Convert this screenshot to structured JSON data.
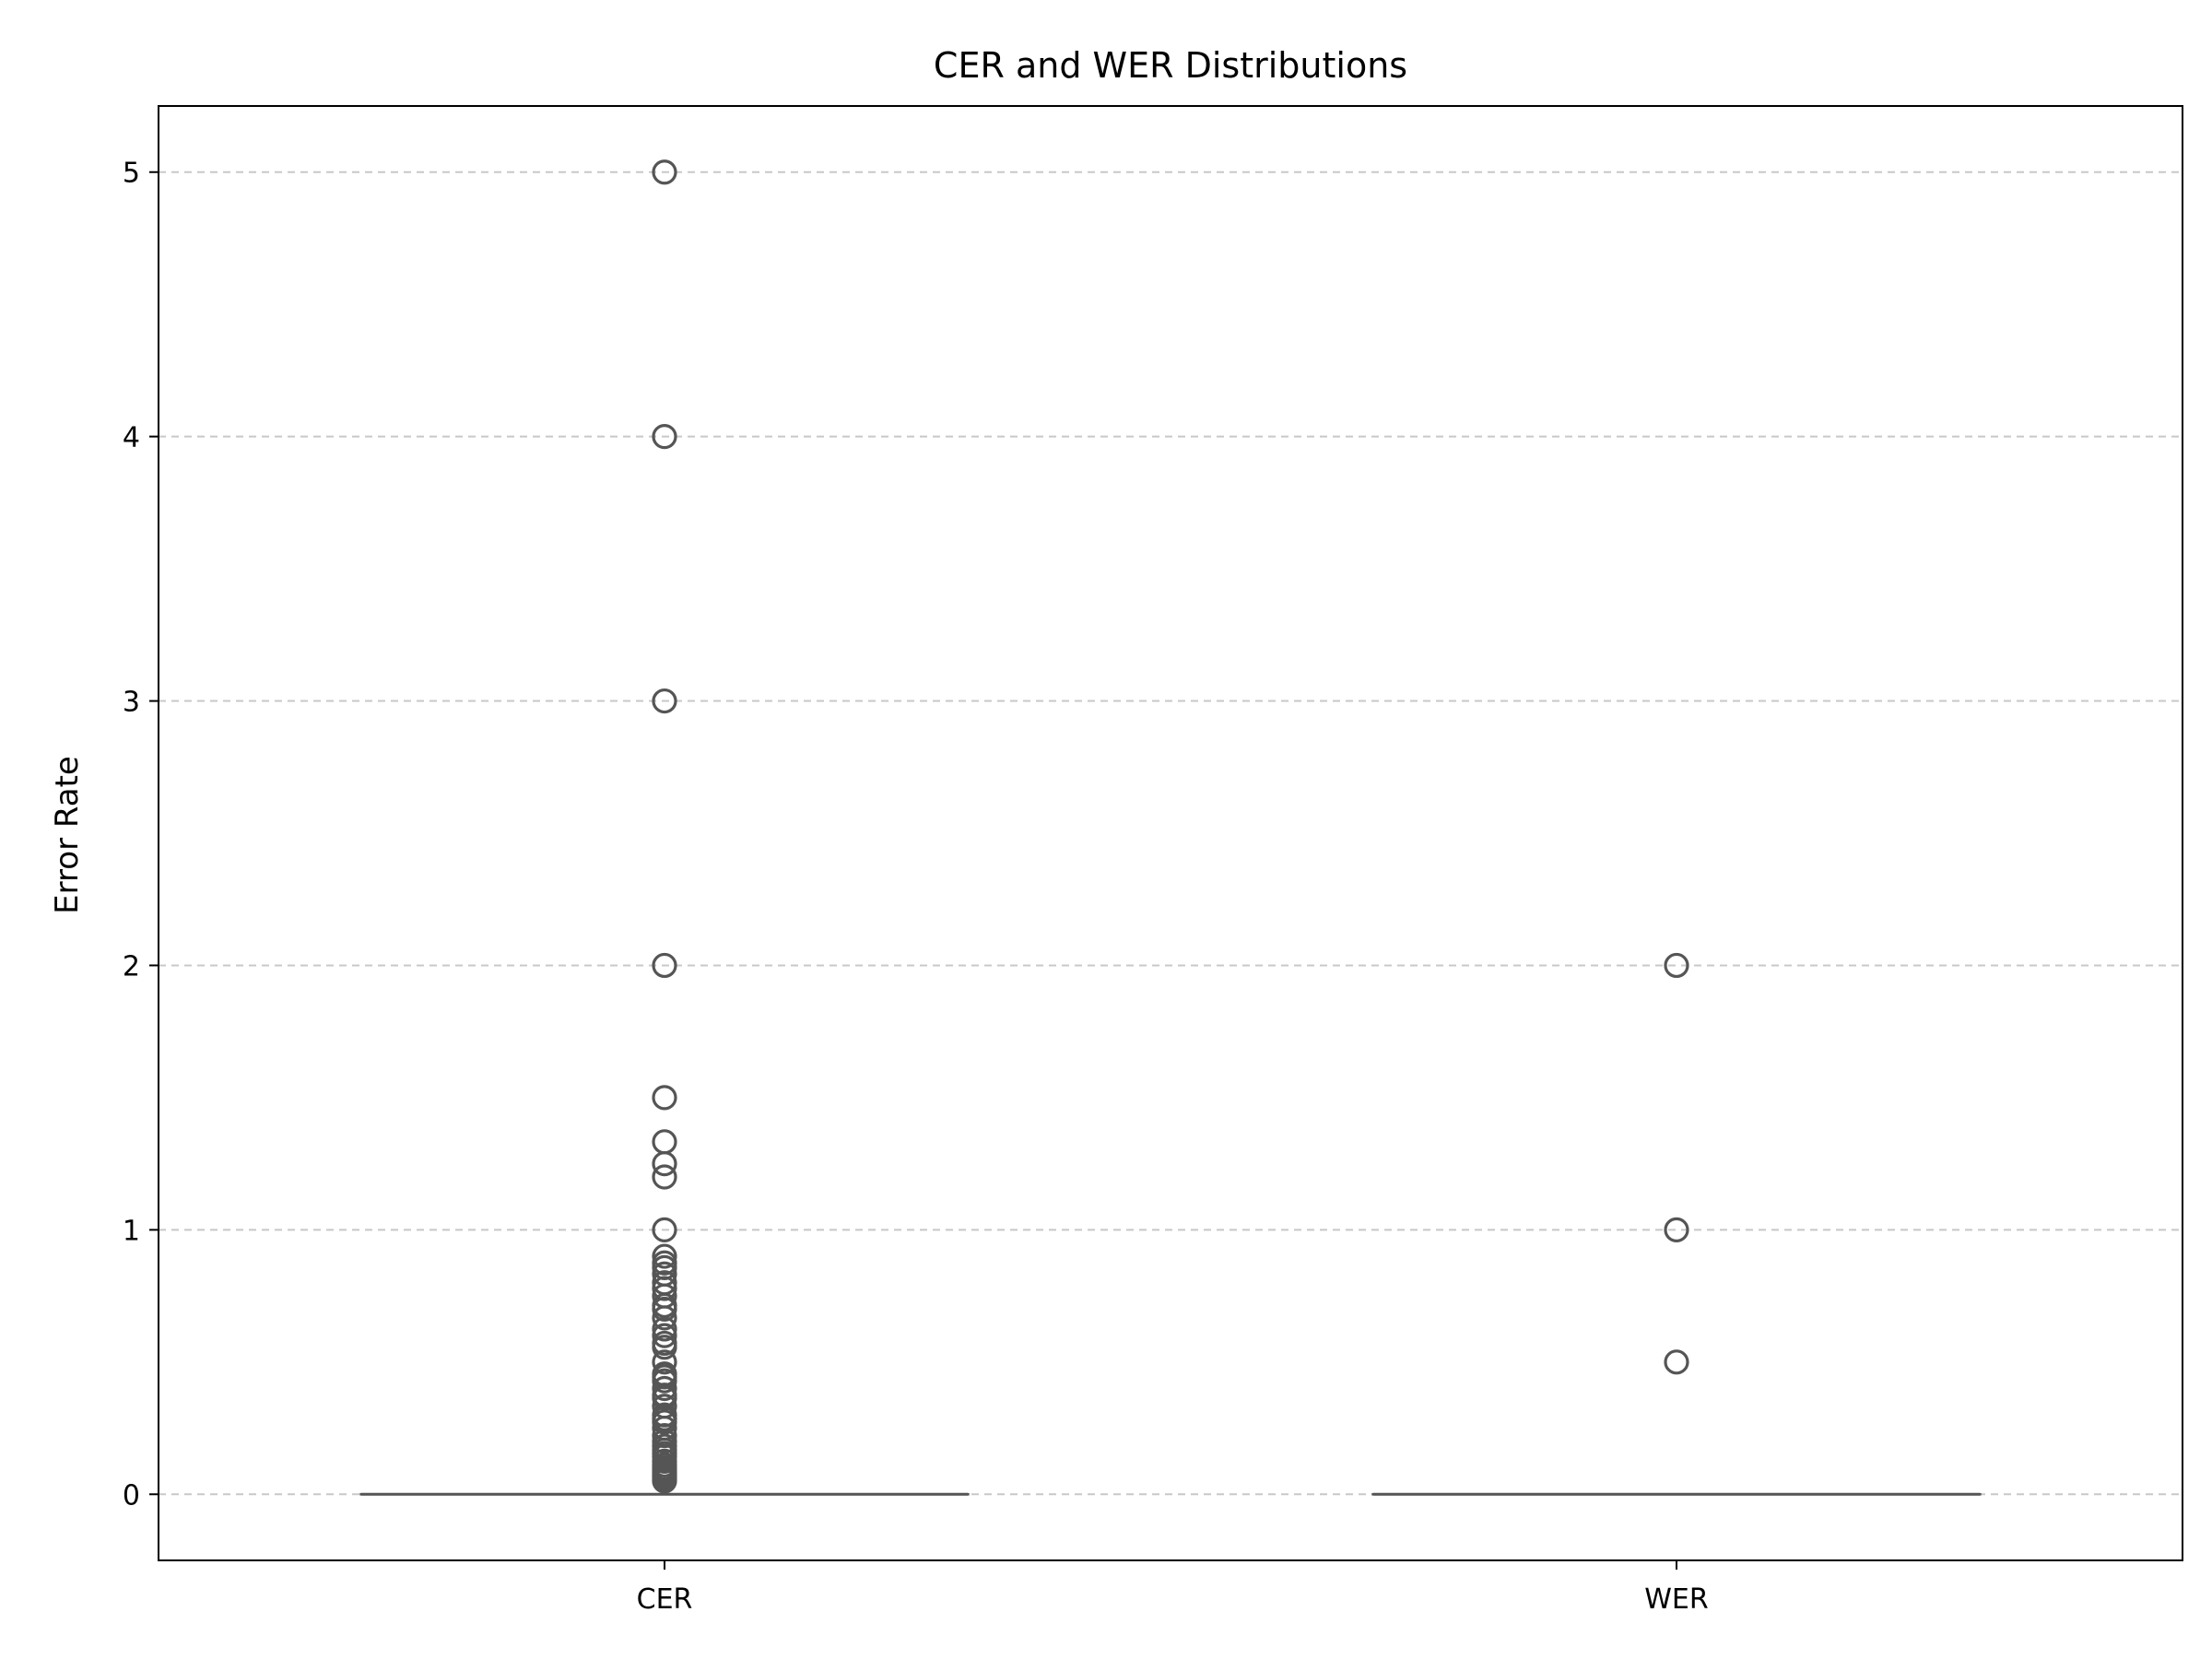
{
  "chart_data": {
    "type": "box",
    "title": "CER and WER Distributions",
    "xlabel": "",
    "ylabel": "Error Rate",
    "categories": [
      "CER",
      "WER"
    ],
    "ylim": [
      -0.25,
      5.25
    ],
    "yticks": [
      0,
      1,
      2,
      3,
      4,
      5
    ],
    "grid": {
      "axis": "y",
      "style": "dashed"
    },
    "colors": {
      "box_line": "#555555",
      "grid": "#c8c8c8",
      "axes": "#000000"
    },
    "boxes": [
      {
        "name": "CER",
        "q1": 0,
        "median": 0,
        "q3": 0,
        "whisker_low": 0,
        "whisker_high": 0,
        "outliers": [
          5,
          4,
          3,
          2,
          1.5,
          1.333,
          1.25,
          1.2,
          1,
          0.9,
          0.875,
          0.857,
          0.833,
          0.8,
          0.778,
          0.75,
          0.714,
          0.7,
          0.667,
          0.625,
          0.6,
          0.571,
          0.556,
          0.5,
          0.455,
          0.444,
          0.429,
          0.4,
          0.375,
          0.364,
          0.333,
          0.3,
          0.286,
          0.273,
          0.25,
          0.222,
          0.2,
          0.182,
          0.167,
          0.154,
          0.143,
          0.125,
          0.111,
          0.1,
          0.091,
          0.083,
          0.077,
          0.071,
          0.067,
          0.062,
          0.056,
          0.05
        ]
      },
      {
        "name": "WER",
        "q1": 0,
        "median": 0,
        "q3": 0,
        "whisker_low": 0,
        "whisker_high": 0,
        "outliers": [
          2,
          1,
          0.5
        ]
      }
    ]
  }
}
